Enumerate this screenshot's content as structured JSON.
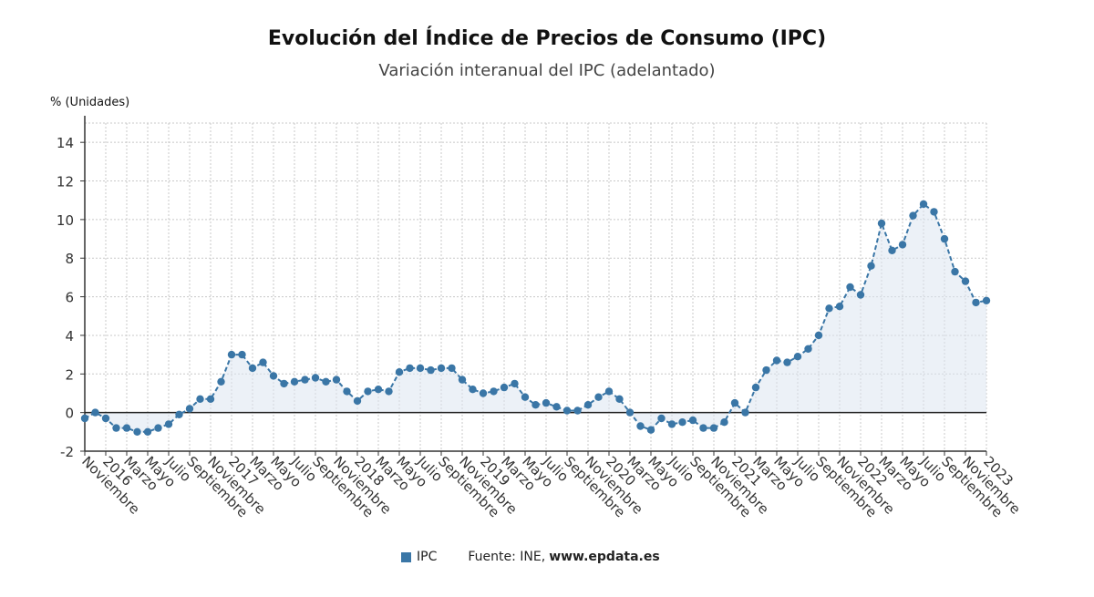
{
  "chart_data": {
    "type": "line",
    "title": "Evolución del Índice de Precios de Consumo (IPC)",
    "subtitle": "Variación interanual del IPC (adelantado)",
    "ylabel": "% (Unidades)",
    "ylim": [
      -2,
      15
    ],
    "yticks": [
      -2,
      0,
      2,
      4,
      6,
      8,
      10,
      12,
      14
    ],
    "grid": true,
    "legend_position": "bottom",
    "x_tick_labels": [
      "Noviembre",
      "2016",
      "Marzo",
      "Mayo",
      "Julio",
      "Septiembre",
      "Noviembre",
      "2017",
      "Marzo",
      "Mayo",
      "Julio",
      "Septiembre",
      "Noviembre",
      "2018",
      "Marzo",
      "Mayo",
      "Julio",
      "Septiembre",
      "Noviembre",
      "2019",
      "Marzo",
      "Mayo",
      "Julio",
      "Septiembre",
      "Noviembre",
      "2020",
      "Marzo",
      "Mayo",
      "Julio",
      "Septiembre",
      "Noviembre",
      "2021",
      "Marzo",
      "Mayo",
      "Julio",
      "Septiembre",
      "Noviembre",
      "2022",
      "Marzo",
      "Mayo",
      "Julio",
      "Septiembre",
      "Noviembre",
      "2023"
    ],
    "series": [
      {
        "name": "IPC",
        "color": "#3a76a6",
        "values": [
          -0.3,
          0.0,
          -0.3,
          -0.8,
          -0.8,
          -1.0,
          -1.0,
          -0.8,
          -0.6,
          -0.1,
          0.2,
          0.7,
          0.7,
          1.6,
          3.0,
          3.0,
          2.3,
          2.6,
          1.9,
          1.5,
          1.6,
          1.7,
          1.8,
          1.6,
          1.7,
          1.1,
          0.6,
          1.1,
          1.2,
          1.1,
          2.1,
          2.3,
          2.3,
          2.2,
          2.3,
          2.3,
          1.7,
          1.2,
          1.0,
          1.1,
          1.3,
          1.5,
          0.8,
          0.4,
          0.5,
          0.3,
          0.1,
          0.1,
          0.4,
          0.8,
          1.1,
          0.7,
          0.0,
          -0.7,
          -0.9,
          -0.3,
          -0.6,
          -0.5,
          -0.4,
          -0.8,
          -0.8,
          -0.5,
          0.5,
          0.0,
          1.3,
          2.2,
          2.7,
          2.6,
          2.9,
          3.3,
          4.0,
          5.4,
          5.5,
          6.5,
          6.1,
          7.6,
          9.8,
          8.4,
          8.7,
          10.2,
          10.8,
          10.4,
          9.0,
          7.3,
          6.8,
          5.7,
          5.8
        ]
      }
    ]
  },
  "legend": {
    "label": "IPC",
    "color": "#3a76a6"
  },
  "source": {
    "label": "Fuente: INE,",
    "link": "www.epdata.es"
  }
}
